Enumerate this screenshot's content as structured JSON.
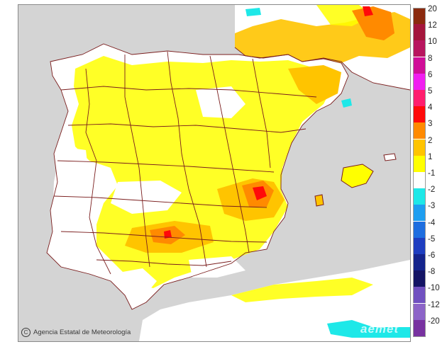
{
  "credit": {
    "text": "Agencia Estatal de Meteorología",
    "copyright_symbol": "C"
  },
  "watermark": "aemet",
  "map": {
    "sea_color": "#d4d4d4",
    "land_color": "#ffffff",
    "border_color": "#7a1d1d",
    "anomaly_areas": [
      {
        "name": "south-france-band",
        "level": 2
      },
      {
        "name": "catalonia-east",
        "level": 2
      },
      {
        "name": "valencia-hotspot",
        "level": 5
      },
      {
        "name": "andalucia-hotspot",
        "level": 4
      },
      {
        "name": "north-africa-cold",
        "level": -1
      }
    ]
  },
  "legend": {
    "items": [
      {
        "label": "20",
        "color": "#8b2a0e"
      },
      {
        "label": "12",
        "color": "#a4163c"
      },
      {
        "label": "10",
        "color": "#b8155e"
      },
      {
        "label": "8",
        "color": "#d00e98"
      },
      {
        "label": "6",
        "color": "#f01ef0"
      },
      {
        "label": "5",
        "color": "#ff1e6e"
      },
      {
        "label": "4",
        "color": "#ff0a0a"
      },
      {
        "label": "3",
        "color": "#ff8a00"
      },
      {
        "label": "2",
        "color": "#ffc400"
      },
      {
        "label": "1",
        "color": "#ffff00"
      },
      {
        "label": "-1",
        "color": "#ffffff"
      },
      {
        "label": "-2",
        "color": "#1ee8e8"
      },
      {
        "label": "-3",
        "color": "#1e9ef0"
      },
      {
        "label": "-4",
        "color": "#1e6ee0"
      },
      {
        "label": "-5",
        "color": "#1e3ec0"
      },
      {
        "label": "-6",
        "color": "#14248c"
      },
      {
        "label": "-8",
        "color": "#141464"
      },
      {
        "label": "-10",
        "color": "#7050c0"
      },
      {
        "label": "-12",
        "color": "#8c64c8"
      },
      {
        "label": "-20",
        "color": "#7832a0"
      }
    ]
  }
}
